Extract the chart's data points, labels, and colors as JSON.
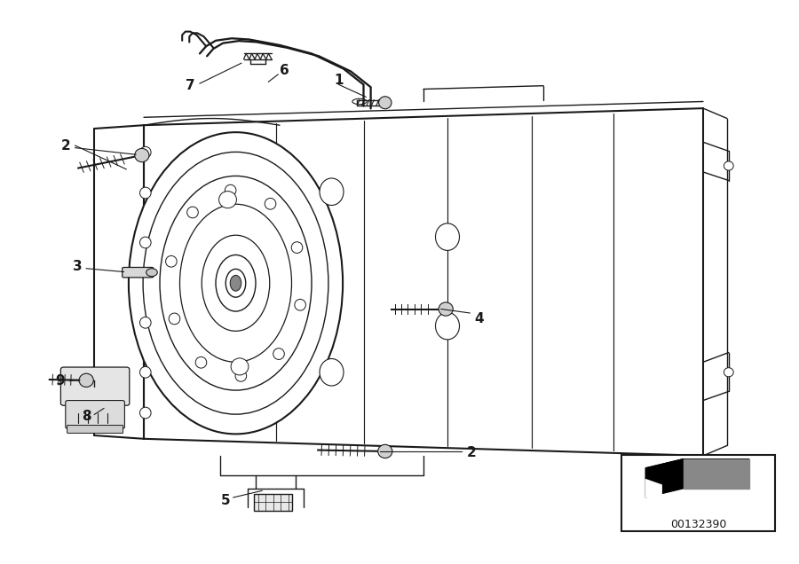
{
  "bg_color": "#ffffff",
  "line_color": "#1a1a1a",
  "diagram_id": "00132390"
}
